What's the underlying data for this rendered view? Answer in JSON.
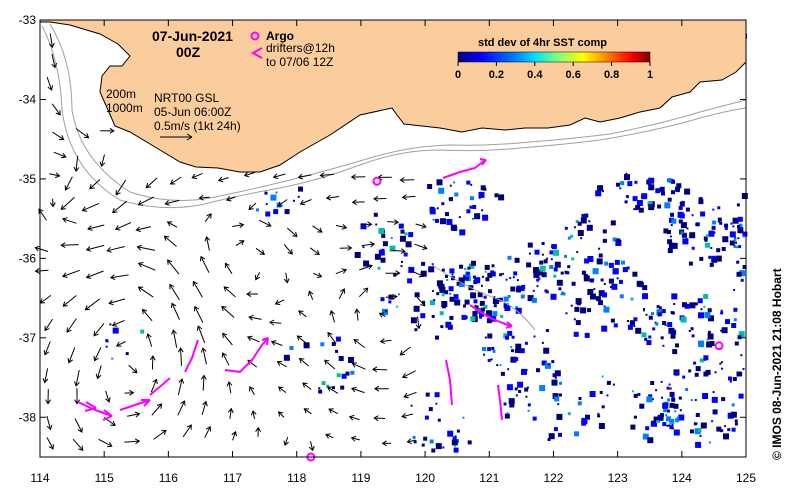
{
  "title": {
    "date": "07-Jun-2021",
    "hour": "00Z"
  },
  "legend_argo": {
    "argo_label": "Argo",
    "drifters_label": "drifters@12h",
    "drifters_until": "to 07/06 12Z"
  },
  "colorbar": {
    "title": "std dev of 4hr SST comp",
    "ticks": [
      "0",
      "0.2",
      "0.4",
      "0.6",
      "0.8",
      "1"
    ],
    "colors": [
      "#00007f",
      "#0000ff",
      "#0080ff",
      "#00e0ff",
      "#80ff80",
      "#ffff00",
      "#ff8000",
      "#ff0000",
      "#800000"
    ]
  },
  "contours_legend": {
    "iso200": "200m",
    "iso1000": "1000m"
  },
  "current_info": {
    "product": "NRT00 GSL",
    "date": "05-Jun 06:00Z",
    "scale": "0.5m/s (1kt 24h)"
  },
  "axes": {
    "x_ticks": [
      "114",
      "115",
      "116",
      "117",
      "118",
      "119",
      "120",
      "121",
      "122",
      "123",
      "124",
      "125"
    ],
    "y_ticks": [
      "-33",
      "-34",
      "-35",
      "-36",
      "-37",
      "-38"
    ],
    "xlim": [
      114,
      125
    ],
    "ylim": [
      -38.5,
      -33
    ]
  },
  "credit": "© IMOS 08-Jun-2021 21:08 Hobart",
  "argo_floats": [
    {
      "lon": 119.25,
      "lat": -35.03
    },
    {
      "lon": 118.22,
      "lat": -38.5
    },
    {
      "lon": 124.58,
      "lat": -37.1
    }
  ],
  "colors": {
    "land": "#fbcc9c",
    "coast": "#000000",
    "isobath": "#a0a0a0",
    "drifter": "#ff00ff",
    "sst_dark": "#00007f",
    "sst_mid": "#0000ff"
  }
}
